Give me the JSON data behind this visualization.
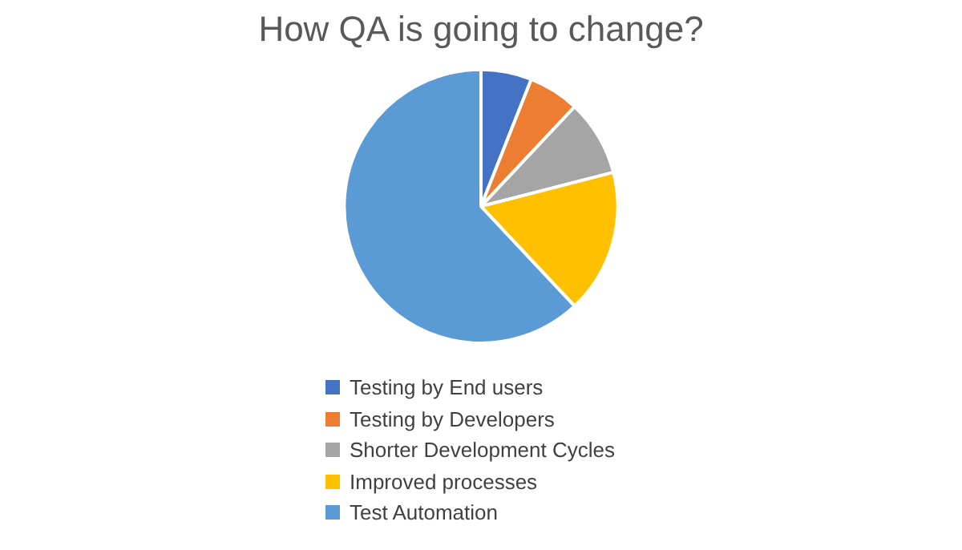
{
  "chart_data": {
    "type": "pie",
    "title": "How QA is going to change?",
    "categories": [
      "Testing by End users",
      "Testing by Developers",
      "Shorter Development Cycles",
      "Improved processes",
      "Test Automation"
    ],
    "values": [
      6,
      6,
      9,
      17,
      62
    ],
    "colors": [
      "#4472c4",
      "#ed7d31",
      "#a5a5a5",
      "#ffc000",
      "#5b9bd5"
    ],
    "legend": "bottom"
  }
}
